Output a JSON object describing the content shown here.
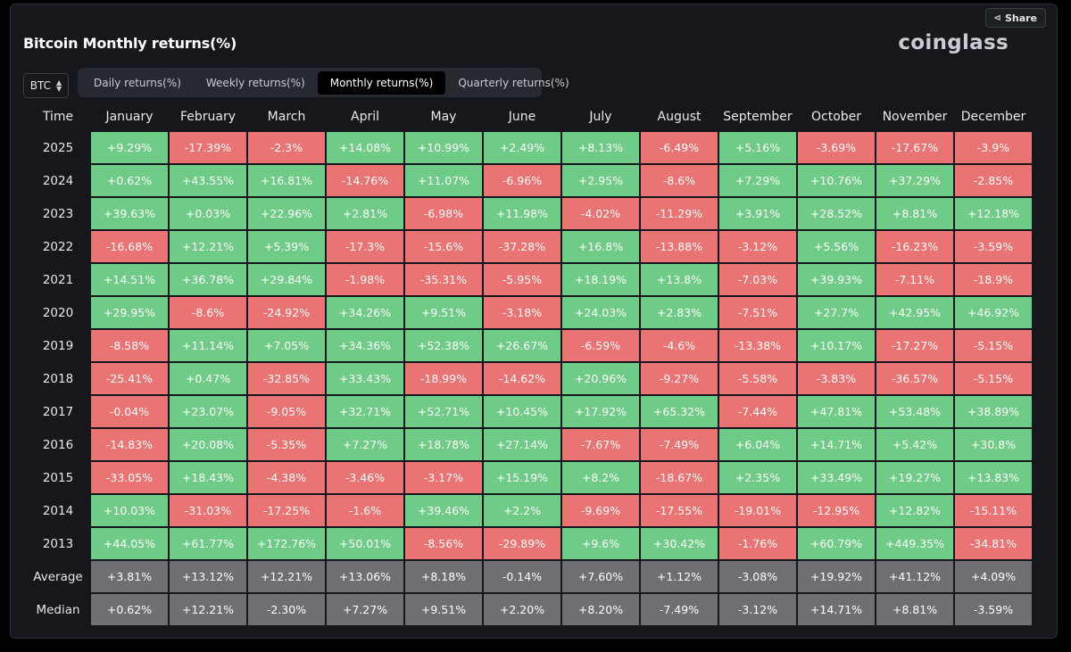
{
  "header": {
    "title": "Bitcoin Monthly returns(%)",
    "logo": "coinglass",
    "share_label": "Share",
    "share_icon": "share-icon"
  },
  "controls": {
    "symbol": "BTC",
    "tabs": [
      {
        "label": "Daily returns(%)",
        "active": false
      },
      {
        "label": "Weekly returns(%)",
        "active": false
      },
      {
        "label": "Monthly returns(%)",
        "active": true
      },
      {
        "label": "Quarterly returns(%)",
        "active": false
      }
    ]
  },
  "colors": {
    "positive": "#6fcc86",
    "negative": "#ea7474",
    "summary": "#6d6f74"
  },
  "chart_data": {
    "type": "table",
    "title": "Bitcoin Monthly returns(%)",
    "row_header_label": "Time",
    "columns": [
      "January",
      "February",
      "March",
      "April",
      "May",
      "June",
      "July",
      "August",
      "September",
      "October",
      "November",
      "December"
    ],
    "rows": [
      {
        "label": "2025",
        "values": [
          "+9.29%",
          "-17.39%",
          "-2.3%",
          "+14.08%",
          "+10.99%",
          "+2.49%",
          "+8.13%",
          "-6.49%",
          "+5.16%",
          "-3.69%",
          "-17.67%",
          "-3.9%"
        ]
      },
      {
        "label": "2024",
        "values": [
          "+0.62%",
          "+43.55%",
          "+16.81%",
          "-14.76%",
          "+11.07%",
          "-6.96%",
          "+2.95%",
          "-8.6%",
          "+7.29%",
          "+10.76%",
          "+37.29%",
          "-2.85%"
        ]
      },
      {
        "label": "2023",
        "values": [
          "+39.63%",
          "+0.03%",
          "+22.96%",
          "+2.81%",
          "-6.98%",
          "+11.98%",
          "-4.02%",
          "-11.29%",
          "+3.91%",
          "+28.52%",
          "+8.81%",
          "+12.18%"
        ]
      },
      {
        "label": "2022",
        "values": [
          "-16.68%",
          "+12.21%",
          "+5.39%",
          "-17.3%",
          "-15.6%",
          "-37.28%",
          "+16.8%",
          "-13.88%",
          "-3.12%",
          "+5.56%",
          "-16.23%",
          "-3.59%"
        ]
      },
      {
        "label": "2021",
        "values": [
          "+14.51%",
          "+36.78%",
          "+29.84%",
          "-1.98%",
          "-35.31%",
          "-5.95%",
          "+18.19%",
          "+13.8%",
          "-7.03%",
          "+39.93%",
          "-7.11%",
          "-18.9%"
        ]
      },
      {
        "label": "2020",
        "values": [
          "+29.95%",
          "-8.6%",
          "-24.92%",
          "+34.26%",
          "+9.51%",
          "-3.18%",
          "+24.03%",
          "+2.83%",
          "-7.51%",
          "+27.7%",
          "+42.95%",
          "+46.92%"
        ]
      },
      {
        "label": "2019",
        "values": [
          "-8.58%",
          "+11.14%",
          "+7.05%",
          "+34.36%",
          "+52.38%",
          "+26.67%",
          "-6.59%",
          "-4.6%",
          "-13.38%",
          "+10.17%",
          "-17.27%",
          "-5.15%"
        ]
      },
      {
        "label": "2018",
        "values": [
          "-25.41%",
          "+0.47%",
          "-32.85%",
          "+33.43%",
          "-18.99%",
          "-14.62%",
          "+20.96%",
          "-9.27%",
          "-5.58%",
          "-3.83%",
          "-36.57%",
          "-5.15%"
        ]
      },
      {
        "label": "2017",
        "values": [
          "-0.04%",
          "+23.07%",
          "-9.05%",
          "+32.71%",
          "+52.71%",
          "+10.45%",
          "+17.92%",
          "+65.32%",
          "-7.44%",
          "+47.81%",
          "+53.48%",
          "+38.89%"
        ]
      },
      {
        "label": "2016",
        "values": [
          "-14.83%",
          "+20.08%",
          "-5.35%",
          "+7.27%",
          "+18.78%",
          "+27.14%",
          "-7.67%",
          "-7.49%",
          "+6.04%",
          "+14.71%",
          "+5.42%",
          "+30.8%"
        ]
      },
      {
        "label": "2015",
        "values": [
          "-33.05%",
          "+18.43%",
          "-4.38%",
          "-3.46%",
          "-3.17%",
          "+15.19%",
          "+8.2%",
          "-18.67%",
          "+2.35%",
          "+33.49%",
          "+19.27%",
          "+13.83%"
        ]
      },
      {
        "label": "2014",
        "values": [
          "+10.03%",
          "-31.03%",
          "-17.25%",
          "-1.6%",
          "+39.46%",
          "+2.2%",
          "-9.69%",
          "-17.55%",
          "-19.01%",
          "-12.95%",
          "+12.82%",
          "-15.11%"
        ]
      },
      {
        "label": "2013",
        "values": [
          "+44.05%",
          "+61.77%",
          "+172.76%",
          "+50.01%",
          "-8.56%",
          "-29.89%",
          "+9.6%",
          "+30.42%",
          "-1.76%",
          "+60.79%",
          "+449.35%",
          "-34.81%"
        ]
      }
    ],
    "summary_rows": [
      {
        "label": "Average",
        "values": [
          "+3.81%",
          "+13.12%",
          "+12.21%",
          "+13.06%",
          "+8.18%",
          "-0.14%",
          "+7.60%",
          "+1.12%",
          "-3.08%",
          "+19.92%",
          "+41.12%",
          "+4.09%"
        ]
      },
      {
        "label": "Median",
        "values": [
          "+0.62%",
          "+12.21%",
          "-2.30%",
          "+7.27%",
          "+9.51%",
          "+2.20%",
          "+8.20%",
          "-7.49%",
          "-3.12%",
          "+14.71%",
          "+8.81%",
          "-3.59%"
        ]
      }
    ]
  }
}
